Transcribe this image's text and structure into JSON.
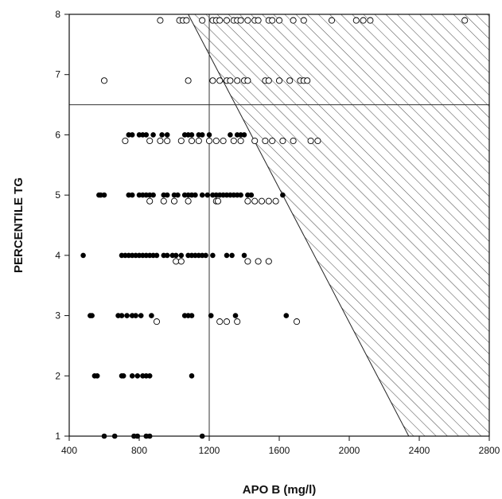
{
  "chart_data": {
    "type": "scatter",
    "title": "",
    "xlabel": "APO B (mg/l)",
    "ylabel": "PERCENTILE TG",
    "xlim": [
      400,
      2800
    ],
    "ylim": [
      1,
      8
    ],
    "x_ticks": [
      400,
      800,
      1200,
      1600,
      2000,
      2400,
      2800
    ],
    "y_ticks": [
      1,
      2,
      3,
      4,
      5,
      6,
      7,
      8
    ],
    "grid": false,
    "reference_lines": {
      "x": 1200,
      "y": 6.5
    },
    "shaded_region": {
      "pattern": "diagonal-hatch",
      "polygon": [
        [
          1080,
          8
        ],
        [
          2800,
          8
        ],
        [
          2800,
          1
        ],
        [
          2340,
          1
        ]
      ]
    },
    "series": [
      {
        "marker": "filled-circle",
        "color": "#000000",
        "points": [
          [
            600,
            1
          ],
          [
            660,
            1
          ],
          [
            770,
            1
          ],
          [
            790,
            1
          ],
          [
            840,
            1
          ],
          [
            860,
            1
          ],
          [
            1160,
            1
          ],
          [
            545,
            2
          ],
          [
            560,
            2
          ],
          [
            700,
            2
          ],
          [
            710,
            2
          ],
          [
            760,
            2
          ],
          [
            790,
            2
          ],
          [
            820,
            2
          ],
          [
            840,
            2
          ],
          [
            860,
            2
          ],
          [
            1100,
            2
          ],
          [
            520,
            3
          ],
          [
            530,
            3
          ],
          [
            680,
            3
          ],
          [
            700,
            3
          ],
          [
            730,
            3
          ],
          [
            760,
            3
          ],
          [
            780,
            3
          ],
          [
            810,
            3
          ],
          [
            870,
            3
          ],
          [
            1060,
            3
          ],
          [
            1080,
            3
          ],
          [
            1100,
            3
          ],
          [
            1210,
            3
          ],
          [
            1350,
            3
          ],
          [
            1640,
            3
          ],
          [
            480,
            4
          ],
          [
            700,
            4
          ],
          [
            720,
            4
          ],
          [
            740,
            4
          ],
          [
            760,
            4
          ],
          [
            780,
            4
          ],
          [
            800,
            4
          ],
          [
            820,
            4
          ],
          [
            840,
            4
          ],
          [
            860,
            4
          ],
          [
            880,
            4
          ],
          [
            900,
            4
          ],
          [
            940,
            4
          ],
          [
            960,
            4
          ],
          [
            990,
            4
          ],
          [
            1010,
            4
          ],
          [
            1040,
            4
          ],
          [
            1080,
            4
          ],
          [
            1100,
            4
          ],
          [
            1120,
            4
          ],
          [
            1140,
            4
          ],
          [
            1160,
            4
          ],
          [
            1180,
            4
          ],
          [
            1220,
            4
          ],
          [
            1300,
            4
          ],
          [
            1330,
            4
          ],
          [
            1400,
            4
          ],
          [
            570,
            5
          ],
          [
            580,
            5
          ],
          [
            600,
            5
          ],
          [
            740,
            5
          ],
          [
            760,
            5
          ],
          [
            800,
            5
          ],
          [
            820,
            5
          ],
          [
            840,
            5
          ],
          [
            860,
            5
          ],
          [
            880,
            5
          ],
          [
            940,
            5
          ],
          [
            960,
            5
          ],
          [
            1000,
            5
          ],
          [
            1020,
            5
          ],
          [
            1060,
            5
          ],
          [
            1080,
            5
          ],
          [
            1100,
            5
          ],
          [
            1120,
            5
          ],
          [
            1160,
            5
          ],
          [
            1190,
            5
          ],
          [
            1220,
            5
          ],
          [
            1240,
            5
          ],
          [
            1260,
            5
          ],
          [
            1280,
            5
          ],
          [
            1300,
            5
          ],
          [
            1320,
            5
          ],
          [
            1340,
            5
          ],
          [
            1360,
            5
          ],
          [
            1380,
            5
          ],
          [
            1420,
            5
          ],
          [
            1440,
            5
          ],
          [
            1620,
            5
          ],
          [
            740,
            6
          ],
          [
            760,
            6
          ],
          [
            800,
            6
          ],
          [
            820,
            6
          ],
          [
            840,
            6
          ],
          [
            880,
            6
          ],
          [
            930,
            6
          ],
          [
            960,
            6
          ],
          [
            1060,
            6
          ],
          [
            1080,
            6
          ],
          [
            1100,
            6
          ],
          [
            1140,
            6
          ],
          [
            1160,
            6
          ],
          [
            1200,
            6
          ],
          [
            1320,
            6
          ],
          [
            1360,
            6
          ],
          [
            1380,
            6
          ],
          [
            1400,
            6
          ]
        ]
      },
      {
        "marker": "open-circle",
        "color": "#000000",
        "points": [
          [
            900,
            2.9
          ],
          [
            1260,
            2.9
          ],
          [
            1300,
            2.9
          ],
          [
            1360,
            2.9
          ],
          [
            1700,
            2.9
          ],
          [
            1010,
            3.9
          ],
          [
            1040,
            3.9
          ],
          [
            1420,
            3.9
          ],
          [
            1480,
            3.9
          ],
          [
            1540,
            3.9
          ],
          [
            860,
            4.9
          ],
          [
            940,
            4.9
          ],
          [
            1000,
            4.9
          ],
          [
            1080,
            4.9
          ],
          [
            1240,
            4.9
          ],
          [
            1250,
            4.9
          ],
          [
            1420,
            4.9
          ],
          [
            1460,
            4.9
          ],
          [
            1500,
            4.9
          ],
          [
            1540,
            4.9
          ],
          [
            1580,
            4.9
          ],
          [
            720,
            5.9
          ],
          [
            860,
            5.9
          ],
          [
            920,
            5.9
          ],
          [
            960,
            5.9
          ],
          [
            1040,
            5.9
          ],
          [
            1100,
            5.9
          ],
          [
            1140,
            5.9
          ],
          [
            1200,
            5.9
          ],
          [
            1240,
            5.9
          ],
          [
            1280,
            5.9
          ],
          [
            1340,
            5.9
          ],
          [
            1380,
            5.9
          ],
          [
            1460,
            5.9
          ],
          [
            1520,
            5.9
          ],
          [
            1560,
            5.9
          ],
          [
            1620,
            5.9
          ],
          [
            1680,
            5.9
          ],
          [
            1780,
            5.9
          ],
          [
            1820,
            5.9
          ],
          [
            600,
            6.9
          ],
          [
            1080,
            6.9
          ],
          [
            1220,
            6.9
          ],
          [
            1260,
            6.9
          ],
          [
            1300,
            6.9
          ],
          [
            1320,
            6.9
          ],
          [
            1360,
            6.9
          ],
          [
            1400,
            6.9
          ],
          [
            1420,
            6.9
          ],
          [
            1520,
            6.9
          ],
          [
            1540,
            6.9
          ],
          [
            1600,
            6.9
          ],
          [
            1660,
            6.9
          ],
          [
            1720,
            6.9
          ],
          [
            1740,
            6.9
          ],
          [
            1760,
            6.9
          ],
          [
            920,
            7.9
          ],
          [
            1030,
            7.9
          ],
          [
            1050,
            7.9
          ],
          [
            1070,
            7.9
          ],
          [
            1160,
            7.9
          ],
          [
            1220,
            7.9
          ],
          [
            1240,
            7.9
          ],
          [
            1260,
            7.9
          ],
          [
            1300,
            7.9
          ],
          [
            1340,
            7.9
          ],
          [
            1360,
            7.9
          ],
          [
            1380,
            7.9
          ],
          [
            1420,
            7.9
          ],
          [
            1460,
            7.9
          ],
          [
            1480,
            7.9
          ],
          [
            1540,
            7.9
          ],
          [
            1560,
            7.9
          ],
          [
            1600,
            7.9
          ],
          [
            1680,
            7.9
          ],
          [
            1740,
            7.9
          ],
          [
            1900,
            7.9
          ],
          [
            2040,
            7.9
          ],
          [
            2080,
            7.9
          ],
          [
            2120,
            7.9
          ],
          [
            2660,
            7.9
          ]
        ]
      }
    ]
  }
}
